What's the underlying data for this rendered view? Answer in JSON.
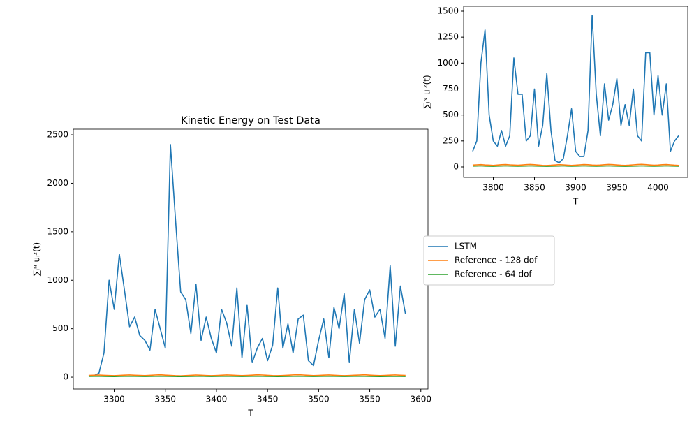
{
  "chart_data": [
    {
      "type": "line",
      "title": "Kinetic Energy on Test Data",
      "xlabel": "T",
      "ylabel": "∑ᵢᴺ uᵢ²(t)",
      "x": [
        3275,
        3280,
        3285,
        3290,
        3295,
        3300,
        3305,
        3310,
        3315,
        3320,
        3325,
        3330,
        3335,
        3340,
        3345,
        3350,
        3355,
        3360,
        3365,
        3370,
        3375,
        3380,
        3385,
        3390,
        3395,
        3400,
        3405,
        3410,
        3415,
        3420,
        3425,
        3430,
        3435,
        3440,
        3445,
        3450,
        3455,
        3460,
        3465,
        3470,
        3475,
        3480,
        3485,
        3490,
        3495,
        3500,
        3505,
        3510,
        3515,
        3520,
        3525,
        3530,
        3535,
        3540,
        3545,
        3550,
        3555,
        3560,
        3565,
        3570,
        3575,
        3580,
        3585
      ],
      "series": [
        {
          "name": "LSTM",
          "color": "#1f77b4",
          "values": [
            10,
            15,
            40,
            250,
            1000,
            700,
            1270,
            900,
            520,
            620,
            430,
            380,
            280,
            700,
            500,
            300,
            2400,
            1620,
            880,
            800,
            450,
            960,
            380,
            620,
            400,
            250,
            700,
            560,
            320,
            920,
            200,
            740,
            150,
            300,
            400,
            170,
            330,
            920,
            300,
            550,
            250,
            600,
            640,
            170,
            120,
            380,
            600,
            200,
            720,
            500,
            860,
            150,
            700,
            350,
            800,
            900,
            620,
            700,
            400,
            1150,
            320,
            940,
            650
          ]
        },
        {
          "name": "Reference - 128 dof",
          "color": "#ff7f0e",
          "values": [
            18,
            20,
            22,
            19,
            17,
            15,
            18,
            21,
            23,
            20,
            18,
            16,
            19,
            22,
            24,
            21,
            18,
            15,
            14,
            16,
            19,
            22,
            20,
            17,
            15,
            17,
            20,
            23,
            21,
            18,
            16,
            18,
            21,
            24,
            22,
            19,
            16,
            15,
            17,
            20,
            23,
            25,
            22,
            19,
            16,
            18,
            21,
            23,
            20,
            17,
            15,
            17,
            20,
            22,
            24,
            21,
            18,
            16,
            18,
            21,
            23,
            20,
            18
          ]
        },
        {
          "name": "Reference - 64 dof",
          "color": "#2ca02c",
          "values": [
            8,
            9,
            10,
            8,
            7,
            6,
            8,
            9,
            10,
            9,
            8,
            7,
            8,
            9,
            10,
            9,
            8,
            7,
            6,
            7,
            8,
            9,
            10,
            8,
            7,
            8,
            9,
            10,
            9,
            8,
            7,
            8,
            9,
            10,
            9,
            8,
            7,
            6,
            7,
            8,
            9,
            10,
            9,
            8,
            7,
            8,
            9,
            10,
            9,
            8,
            7,
            8,
            9,
            10,
            9,
            8,
            7,
            6,
            7,
            8,
            9,
            8,
            7
          ]
        }
      ],
      "xlim": [
        3260,
        3607
      ],
      "ylim": [
        -122,
        2558
      ],
      "xticks": [
        3300,
        3350,
        3400,
        3450,
        3500,
        3550,
        3600
      ],
      "yticks": [
        0,
        500,
        1000,
        1500,
        2000,
        2500
      ],
      "legend": "outside right"
    },
    {
      "type": "line",
      "xlabel": "T",
      "ylabel": "∑ᵢᴺ uᵢ²(t)",
      "x": [
        3775,
        3780,
        3785,
        3790,
        3795,
        3800,
        3805,
        3810,
        3815,
        3820,
        3825,
        3830,
        3835,
        3840,
        3845,
        3850,
        3855,
        3860,
        3865,
        3870,
        3875,
        3880,
        3885,
        3890,
        3895,
        3900,
        3905,
        3910,
        3915,
        3920,
        3925,
        3930,
        3935,
        3940,
        3945,
        3950,
        3955,
        3960,
        3965,
        3970,
        3975,
        3980,
        3985,
        3990,
        3995,
        4000,
        4005,
        4010,
        4015,
        4020,
        4025
      ],
      "series": [
        {
          "name": "LSTM",
          "color": "#1f77b4",
          "values": [
            150,
            250,
            1000,
            1320,
            500,
            250,
            200,
            350,
            200,
            300,
            1050,
            700,
            700,
            250,
            300,
            750,
            200,
            400,
            900,
            350,
            60,
            40,
            80,
            300,
            560,
            150,
            100,
            100,
            350,
            1460,
            700,
            300,
            800,
            450,
            600,
            850,
            400,
            600,
            400,
            750,
            300,
            250,
            1100,
            1100,
            500,
            880,
            500,
            800,
            150,
            250,
            300
          ]
        },
        {
          "name": "Reference - 128 dof",
          "color": "#ff7f0e",
          "values": [
            18,
            20,
            22,
            19,
            17,
            15,
            18,
            21,
            23,
            20,
            18,
            16,
            19,
            22,
            24,
            21,
            18,
            15,
            14,
            16,
            19,
            22,
            20,
            17,
            15,
            17,
            20,
            23,
            21,
            18,
            16,
            18,
            21,
            24,
            22,
            19,
            16,
            15,
            17,
            20,
            23,
            25,
            22,
            19,
            16,
            18,
            21,
            23,
            20,
            17,
            15
          ]
        },
        {
          "name": "Reference - 64 dof",
          "color": "#2ca02c",
          "values": [
            8,
            9,
            10,
            8,
            7,
            6,
            8,
            9,
            10,
            9,
            8,
            7,
            8,
            9,
            10,
            9,
            8,
            7,
            6,
            7,
            8,
            9,
            10,
            8,
            7,
            8,
            9,
            10,
            9,
            8,
            7,
            8,
            9,
            10,
            9,
            8,
            7,
            6,
            7,
            8,
            9,
            10,
            9,
            8,
            7,
            8,
            9,
            10,
            9,
            8,
            7
          ]
        }
      ],
      "xlim": [
        3764,
        4036
      ],
      "ylim": [
        -101,
        1547
      ],
      "xticks": [
        3800,
        3850,
        3900,
        3950,
        4000
      ],
      "yticks": [
        0,
        250,
        500,
        750,
        1000,
        1250,
        1500
      ]
    }
  ]
}
